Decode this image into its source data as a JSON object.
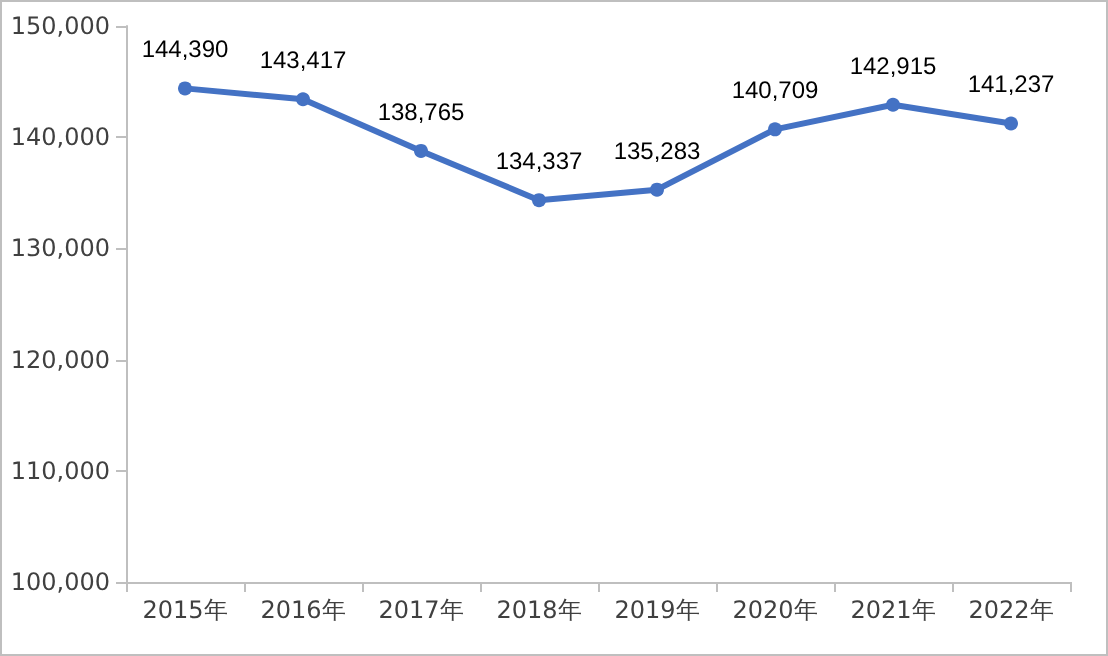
{
  "chart_data": {
    "type": "line",
    "categories": [
      "2015年",
      "2016年",
      "2017年",
      "2018年",
      "2019年",
      "2020年",
      "2021年",
      "2022年"
    ],
    "values": [
      144390,
      143417,
      138765,
      134337,
      135283,
      140709,
      142915,
      141237
    ],
    "value_labels": [
      "144,390",
      "143,417",
      "138,765",
      "134,337",
      "135,283",
      "140,709",
      "142,915",
      "141,237"
    ],
    "color": "#4472c4",
    "marker": "circle",
    "line_style": "solid",
    "grid": false,
    "ylim": [
      100000,
      150000
    ],
    "yticks": [
      {
        "value": 100000,
        "label": "100,000"
      },
      {
        "value": 110000,
        "label": "110,000"
      },
      {
        "value": 120000,
        "label": "120,000"
      },
      {
        "value": 130000,
        "label": "130,000"
      },
      {
        "value": 140000,
        "label": "140,000"
      },
      {
        "value": 150000,
        "label": "150,000"
      }
    ]
  }
}
